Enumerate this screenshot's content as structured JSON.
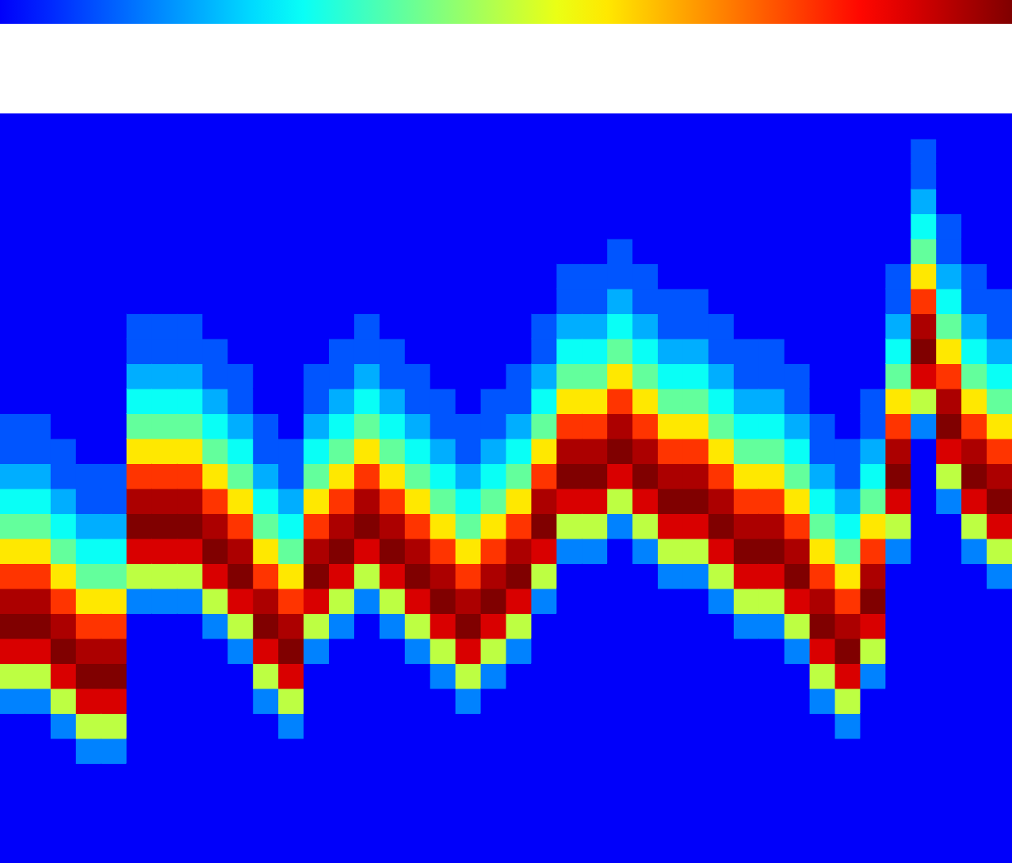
{
  "chart_data": {
    "type": "heatmap",
    "xlim": [
      0,
      40
    ],
    "ylim": [
      0,
      30
    ],
    "tick_labels": false,
    "colorbar_range": [
      0,
      1
    ],
    "cells": [
      [
        0,
        0,
        0,
        0,
        0,
        0,
        0.15,
        0.5,
        0.9,
        1,
        0.95,
        0.8,
        0.6,
        0.4,
        0.3,
        0.2,
        0.1,
        0.1,
        0,
        0,
        0,
        0,
        0,
        0,
        0,
        0,
        0,
        0,
        0,
        0
      ],
      [
        0,
        0,
        0,
        0,
        0,
        0,
        0.15,
        0.5,
        0.9,
        1,
        0.95,
        0.8,
        0.6,
        0.4,
        0.3,
        0.2,
        0.1,
        0.1,
        0,
        0,
        0,
        0,
        0,
        0,
        0,
        0,
        0,
        0,
        0,
        0
      ],
      [
        0,
        0,
        0,
        0,
        0,
        0.15,
        0.5,
        0.9,
        1,
        0.95,
        0.8,
        0.6,
        0.4,
        0.3,
        0.2,
        0.1,
        0.1,
        0,
        0,
        0,
        0,
        0,
        0,
        0,
        0,
        0,
        0,
        0,
        0,
        0
      ],
      [
        0,
        0,
        0,
        0,
        0.15,
        0.5,
        0.9,
        1,
        0.95,
        0.8,
        0.6,
        0.4,
        0.3,
        0.2,
        0.1,
        0.1,
        0,
        0,
        0,
        0,
        0,
        0,
        0,
        0,
        0,
        0,
        0,
        0,
        0,
        0
      ],
      [
        0,
        0,
        0,
        0,
        0.15,
        0.5,
        0.9,
        1,
        0.95,
        0.8,
        0.6,
        0.4,
        0.3,
        0.2,
        0.1,
        0.1,
        0,
        0,
        0,
        0,
        0,
        0,
        0,
        0,
        0,
        0,
        0,
        0,
        0,
        0
      ],
      [
        0,
        0,
        0,
        0,
        0,
        0,
        0,
        0,
        0,
        0,
        0.15,
        0.5,
        0.9,
        1,
        0.95,
        0.8,
        0.6,
        0.4,
        0.3,
        0.2,
        0.1,
        0.1,
        0,
        0,
        0,
        0,
        0,
        0,
        0,
        0
      ],
      [
        0,
        0,
        0,
        0,
        0,
        0,
        0,
        0,
        0,
        0,
        0.15,
        0.5,
        0.9,
        1,
        0.95,
        0.8,
        0.6,
        0.4,
        0.3,
        0.2,
        0.1,
        0.1,
        0,
        0,
        0,
        0,
        0,
        0,
        0,
        0
      ],
      [
        0,
        0,
        0,
        0,
        0,
        0,
        0,
        0,
        0,
        0,
        0.15,
        0.5,
        0.9,
        1,
        0.95,
        0.8,
        0.6,
        0.4,
        0.3,
        0.2,
        0.1,
        0.1,
        0,
        0,
        0,
        0,
        0,
        0,
        0,
        0
      ],
      [
        0,
        0,
        0,
        0,
        0,
        0,
        0,
        0,
        0,
        0.15,
        0.5,
        0.9,
        1,
        0.95,
        0.8,
        0.6,
        0.4,
        0.3,
        0.2,
        0.1,
        0.1,
        0,
        0,
        0,
        0,
        0,
        0,
        0,
        0,
        0
      ],
      [
        0,
        0,
        0,
        0,
        0,
        0,
        0,
        0,
        0.15,
        0.5,
        0.9,
        1,
        0.95,
        0.8,
        0.6,
        0.4,
        0.3,
        0.2,
        0.1,
        0.1,
        0,
        0,
        0,
        0,
        0,
        0,
        0,
        0,
        0,
        0
      ],
      [
        0,
        0,
        0,
        0,
        0,
        0,
        0.15,
        0.5,
        0.9,
        1,
        0.95,
        0.8,
        0.6,
        0.4,
        0.3,
        0.2,
        0.1,
        0.1,
        0,
        0,
        0,
        0,
        0,
        0,
        0,
        0,
        0,
        0,
        0,
        0
      ],
      [
        0,
        0,
        0,
        0,
        0,
        0.15,
        0.5,
        0.9,
        1,
        0.95,
        0.8,
        0.6,
        0.4,
        0.3,
        0.2,
        0.1,
        0.1,
        0,
        0,
        0,
        0,
        0,
        0,
        0,
        0,
        0,
        0,
        0,
        0,
        0
      ],
      [
        0,
        0,
        0,
        0,
        0,
        0,
        0,
        0,
        0.15,
        0.5,
        0.9,
        1,
        0.95,
        0.8,
        0.6,
        0.4,
        0.3,
        0.2,
        0.1,
        0.1,
        0,
        0,
        0,
        0,
        0,
        0,
        0,
        0,
        0,
        0
      ],
      [
        0,
        0,
        0,
        0,
        0,
        0,
        0,
        0,
        0,
        0.15,
        0.5,
        0.9,
        1,
        0.95,
        0.8,
        0.6,
        0.4,
        0.3,
        0.2,
        0.1,
        0.1,
        0,
        0,
        0,
        0,
        0,
        0,
        0,
        0,
        0
      ],
      [
        0,
        0,
        0,
        0,
        0,
        0,
        0,
        0,
        0,
        0,
        0.15,
        0.5,
        0.9,
        1,
        0.95,
        0.8,
        0.6,
        0.4,
        0.3,
        0.2,
        0.1,
        0.1,
        0,
        0,
        0,
        0,
        0,
        0,
        0,
        0
      ],
      [
        0,
        0,
        0,
        0,
        0,
        0,
        0,
        0,
        0,
        0.15,
        0.5,
        0.9,
        1,
        0.95,
        0.8,
        0.6,
        0.4,
        0.3,
        0.2,
        0.1,
        0.1,
        0,
        0,
        0,
        0,
        0,
        0,
        0,
        0,
        0
      ],
      [
        0,
        0,
        0,
        0,
        0,
        0,
        0,
        0,
        0.15,
        0.5,
        0.9,
        1,
        0.95,
        0.8,
        0.6,
        0.4,
        0.3,
        0.2,
        0.1,
        0.1,
        0,
        0,
        0,
        0,
        0,
        0,
        0,
        0,
        0,
        0
      ],
      [
        0,
        0,
        0,
        0,
        0,
        0,
        0,
        0.15,
        0.5,
        0.9,
        1,
        0.95,
        0.8,
        0.6,
        0.4,
        0.3,
        0.2,
        0.1,
        0.1,
        0,
        0,
        0,
        0,
        0,
        0,
        0,
        0,
        0,
        0,
        0
      ],
      [
        0,
        0,
        0,
        0,
        0,
        0,
        0.15,
        0.5,
        0.9,
        1,
        0.95,
        0.8,
        0.6,
        0.4,
        0.3,
        0.2,
        0.1,
        0.1,
        0,
        0,
        0,
        0,
        0,
        0,
        0,
        0,
        0,
        0,
        0,
        0
      ],
      [
        0,
        0,
        0,
        0,
        0,
        0,
        0,
        0.15,
        0.5,
        0.9,
        1,
        0.95,
        0.8,
        0.6,
        0.4,
        0.3,
        0.2,
        0.1,
        0.1,
        0,
        0,
        0,
        0,
        0,
        0,
        0,
        0,
        0,
        0,
        0
      ],
      [
        0,
        0,
        0,
        0,
        0,
        0,
        0,
        0,
        0.15,
        0.5,
        0.9,
        1,
        0.95,
        0.8,
        0.6,
        0.4,
        0.3,
        0.2,
        0.1,
        0.1,
        0,
        0,
        0,
        0,
        0,
        0,
        0,
        0,
        0,
        0
      ],
      [
        0,
        0,
        0,
        0,
        0,
        0,
        0,
        0,
        0,
        0,
        0.15,
        0.5,
        0.9,
        1,
        0.95,
        0.8,
        0.6,
        0.4,
        0.3,
        0.2,
        0.1,
        0.1,
        0,
        0,
        0,
        0,
        0,
        0,
        0,
        0
      ],
      [
        0,
        0,
        0,
        0,
        0,
        0,
        0,
        0,
        0,
        0,
        0,
        0,
        0.15,
        0.5,
        0.9,
        1,
        0.95,
        0.8,
        0.6,
        0.4,
        0.3,
        0.2,
        0.1,
        0.1,
        0,
        0,
        0,
        0,
        0,
        0
      ],
      [
        0,
        0,
        0,
        0,
        0,
        0,
        0,
        0,
        0,
        0,
        0,
        0,
        0.15,
        0.5,
        0.9,
        1,
        0.95,
        0.8,
        0.6,
        0.4,
        0.3,
        0.2,
        0.1,
        0.1,
        0,
        0,
        0,
        0,
        0,
        0
      ],
      [
        0,
        0,
        0,
        0,
        0,
        0,
        0,
        0,
        0,
        0,
        0,
        0,
        0,
        0.15,
        0.5,
        0.9,
        1,
        0.95,
        0.8,
        0.6,
        0.4,
        0.3,
        0.2,
        0.1,
        0.1,
        0,
        0,
        0,
        0,
        0
      ],
      [
        0,
        0,
        0,
        0,
        0,
        0,
        0,
        0,
        0,
        0,
        0,
        0,
        0.15,
        0.5,
        0.9,
        1,
        0.95,
        0.8,
        0.6,
        0.4,
        0.3,
        0.2,
        0.1,
        0.1,
        0,
        0,
        0,
        0,
        0,
        0
      ],
      [
        0,
        0,
        0,
        0,
        0,
        0,
        0,
        0,
        0,
        0,
        0,
        0.15,
        0.5,
        0.9,
        1,
        0.95,
        0.8,
        0.6,
        0.4,
        0.3,
        0.2,
        0.1,
        0.1,
        0,
        0,
        0,
        0,
        0,
        0,
        0
      ],
      [
        0,
        0,
        0,
        0,
        0,
        0,
        0,
        0,
        0,
        0,
        0,
        0.15,
        0.5,
        0.9,
        1,
        0.95,
        0.8,
        0.6,
        0.4,
        0.3,
        0.2,
        0.1,
        0.1,
        0,
        0,
        0,
        0,
        0,
        0,
        0
      ],
      [
        0,
        0,
        0,
        0,
        0,
        0,
        0,
        0,
        0,
        0,
        0.15,
        0.5,
        0.9,
        1,
        0.95,
        0.8,
        0.6,
        0.4,
        0.3,
        0.2,
        0.1,
        0.1,
        0,
        0,
        0,
        0,
        0,
        0,
        0,
        0
      ],
      [
        0,
        0,
        0,
        0,
        0,
        0,
        0,
        0,
        0,
        0.15,
        0.5,
        0.9,
        1,
        0.95,
        0.8,
        0.6,
        0.4,
        0.3,
        0.2,
        0.1,
        0.1,
        0,
        0,
        0,
        0,
        0,
        0,
        0,
        0,
        0
      ],
      [
        0,
        0,
        0,
        0,
        0,
        0,
        0,
        0,
        0,
        0.15,
        0.5,
        0.9,
        1,
        0.95,
        0.8,
        0.6,
        0.4,
        0.3,
        0.2,
        0.1,
        0.1,
        0,
        0,
        0,
        0,
        0,
        0,
        0,
        0,
        0
      ],
      [
        0,
        0,
        0,
        0,
        0,
        0,
        0,
        0,
        0.15,
        0.5,
        0.9,
        1,
        0.95,
        0.8,
        0.6,
        0.4,
        0.3,
        0.2,
        0.1,
        0.1,
        0,
        0,
        0,
        0,
        0,
        0,
        0,
        0,
        0,
        0
      ],
      [
        0,
        0,
        0,
        0,
        0,
        0,
        0.15,
        0.5,
        0.9,
        1,
        0.95,
        0.8,
        0.6,
        0.4,
        0.3,
        0.2,
        0.1,
        0.1,
        0,
        0,
        0,
        0,
        0,
        0,
        0,
        0,
        0,
        0,
        0,
        0
      ],
      [
        0,
        0,
        0,
        0,
        0,
        0.15,
        0.5,
        0.9,
        1,
        0.95,
        0.8,
        0.6,
        0.4,
        0.3,
        0.2,
        0.1,
        0.1,
        0,
        0,
        0,
        0,
        0,
        0,
        0,
        0,
        0,
        0,
        0,
        0,
        0
      ],
      [
        0,
        0,
        0,
        0,
        0,
        0,
        0,
        0.15,
        0.5,
        0.9,
        1,
        0.95,
        0.8,
        0.6,
        0.4,
        0.3,
        0.2,
        0.1,
        0.1,
        0,
        0,
        0,
        0,
        0,
        0,
        0,
        0,
        0,
        0,
        0
      ],
      [
        0,
        0,
        0,
        0,
        0,
        0,
        0,
        0,
        0,
        0,
        0,
        0,
        0.15,
        0.5,
        0.9,
        1,
        0.95,
        0.8,
        0.6,
        0.4,
        0.3,
        0.2,
        0.1,
        0.1,
        0,
        0,
        0,
        0,
        0,
        0
      ],
      [
        0,
        0,
        0,
        0,
        0,
        0,
        0,
        0,
        0,
        0,
        0,
        0,
        0,
        0,
        0,
        0,
        0,
        0.15,
        0.5,
        0.9,
        1,
        0.95,
        0.8,
        0.6,
        0.4,
        0.3,
        0.2,
        0.1,
        0.1,
        0
      ],
      [
        0,
        0,
        0,
        0,
        0,
        0,
        0,
        0,
        0,
        0,
        0,
        0,
        0,
        0,
        0.15,
        0.5,
        0.9,
        1,
        0.95,
        0.8,
        0.6,
        0.4,
        0.3,
        0.2,
        0.1,
        0.1,
        0,
        0,
        0,
        0
      ],
      [
        0,
        0,
        0,
        0,
        0,
        0,
        0,
        0,
        0,
        0,
        0,
        0,
        0.15,
        0.5,
        0.9,
        1,
        0.95,
        0.8,
        0.6,
        0.4,
        0.3,
        0.2,
        0.1,
        0.1,
        0,
        0,
        0,
        0,
        0,
        0
      ],
      [
        0,
        0,
        0,
        0,
        0,
        0,
        0,
        0,
        0,
        0,
        0,
        0.15,
        0.5,
        0.9,
        1,
        0.95,
        0.8,
        0.6,
        0.4,
        0.3,
        0.2,
        0.1,
        0.1,
        0,
        0,
        0,
        0,
        0,
        0,
        0
      ]
    ]
  }
}
